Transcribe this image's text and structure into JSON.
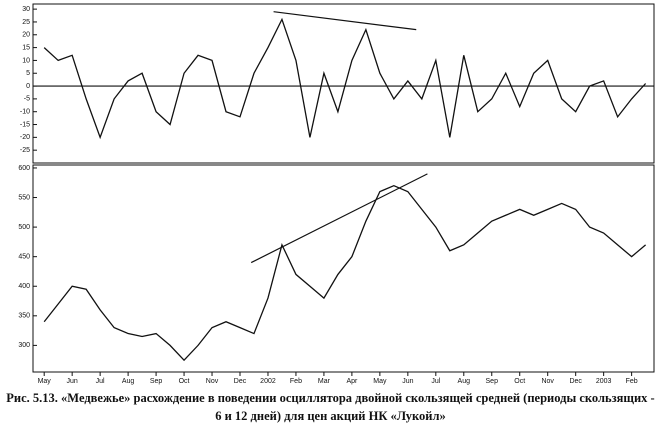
{
  "chart_data": [
    {
      "type": "line",
      "color": "#111",
      "x": [
        0,
        0.5,
        1,
        1.5,
        2,
        2.5,
        3,
        3.5,
        4,
        4.5,
        5,
        5.5,
        6,
        6.5,
        7,
        7.5,
        8,
        8.5,
        9,
        9.5,
        10,
        10.5,
        11,
        11.5,
        12,
        12.5,
        13,
        13.5,
        14,
        14.5,
        15,
        15.5,
        16,
        16.5,
        17,
        17.5,
        18,
        18.5,
        19,
        19.5,
        20,
        20.5,
        21,
        21.5
      ],
      "values": [
        15,
        10,
        12,
        -5,
        -20,
        -5,
        2,
        5,
        -10,
        -15,
        5,
        12,
        10,
        -10,
        -12,
        5,
        15,
        26,
        10,
        -20,
        5,
        -10,
        10,
        22,
        5,
        -5,
        2,
        -5,
        10,
        -20,
        12,
        -10,
        -5,
        5,
        -8,
        5,
        10,
        -5,
        -10,
        0,
        2,
        -12,
        -5,
        1
      ],
      "xlim": [
        -0.4,
        21.8
      ],
      "ylim": [
        -30,
        32
      ],
      "yticks": [
        30,
        25,
        20,
        15,
        10,
        5,
        0,
        -5,
        -10,
        -15,
        -20,
        -25
      ],
      "hline": 0,
      "divergence_line": {
        "x": [
          8.2,
          13.3
        ],
        "y": [
          29,
          22
        ]
      }
    },
    {
      "type": "line",
      "color": "#111",
      "x": [
        0,
        0.5,
        1,
        1.5,
        2,
        2.5,
        3,
        3.5,
        4,
        4.5,
        5,
        5.5,
        6,
        6.5,
        7,
        7.5,
        8,
        8.5,
        9,
        9.5,
        10,
        10.5,
        11,
        11.5,
        12,
        12.5,
        13,
        13.5,
        14,
        14.5,
        15,
        15.5,
        16,
        16.5,
        17,
        17.5,
        18,
        18.5,
        19,
        19.5,
        20,
        20.5,
        21,
        21.5
      ],
      "values": [
        340,
        370,
        400,
        395,
        360,
        330,
        320,
        315,
        320,
        300,
        275,
        300,
        330,
        340,
        330,
        320,
        380,
        470,
        420,
        400,
        380,
        420,
        450,
        510,
        560,
        570,
        560,
        530,
        500,
        460,
        470,
        490,
        510,
        520,
        530,
        520,
        530,
        540,
        530,
        500,
        490,
        470,
        450,
        470
      ],
      "xlim": [
        -0.4,
        21.8
      ],
      "ylim": [
        255,
        605
      ],
      "yticks": [
        300,
        350,
        400,
        450,
        500,
        550,
        600
      ],
      "xticks": [
        {
          "value": 0,
          "label": "May"
        },
        {
          "value": 1,
          "label": "Jun"
        },
        {
          "value": 2,
          "label": "Jul"
        },
        {
          "value": 3,
          "label": "Aug"
        },
        {
          "value": 4,
          "label": "Sep"
        },
        {
          "value": 5,
          "label": "Oct"
        },
        {
          "value": 6,
          "label": "Nov"
        },
        {
          "value": 7,
          "label": "Dec"
        },
        {
          "value": 8,
          "label": "2002"
        },
        {
          "value": 9,
          "label": "Feb"
        },
        {
          "value": 10,
          "label": "Mar"
        },
        {
          "value": 11,
          "label": "Apr"
        },
        {
          "value": 12,
          "label": "May"
        },
        {
          "value": 13,
          "label": "Jun"
        },
        {
          "value": 14,
          "label": "Jul"
        },
        {
          "value": 15,
          "label": "Aug"
        },
        {
          "value": 16,
          "label": "Sep"
        },
        {
          "value": 17,
          "label": "Oct"
        },
        {
          "value": 18,
          "label": "Nov"
        },
        {
          "value": 19,
          "label": "Dec"
        },
        {
          "value": 20,
          "label": "2003"
        },
        {
          "value": 21,
          "label": "Feb"
        }
      ],
      "divergence_line": {
        "x": [
          7.4,
          13.7
        ],
        "y": [
          440,
          590
        ]
      }
    }
  ],
  "caption": [
    "Рис. 5.13. «Медвежье» расхождение в поведении осциллятора двойной скользящей средней (периоды скользящих -",
    "6 и 12 дней) для цен акций НК «Лукойл»"
  ]
}
